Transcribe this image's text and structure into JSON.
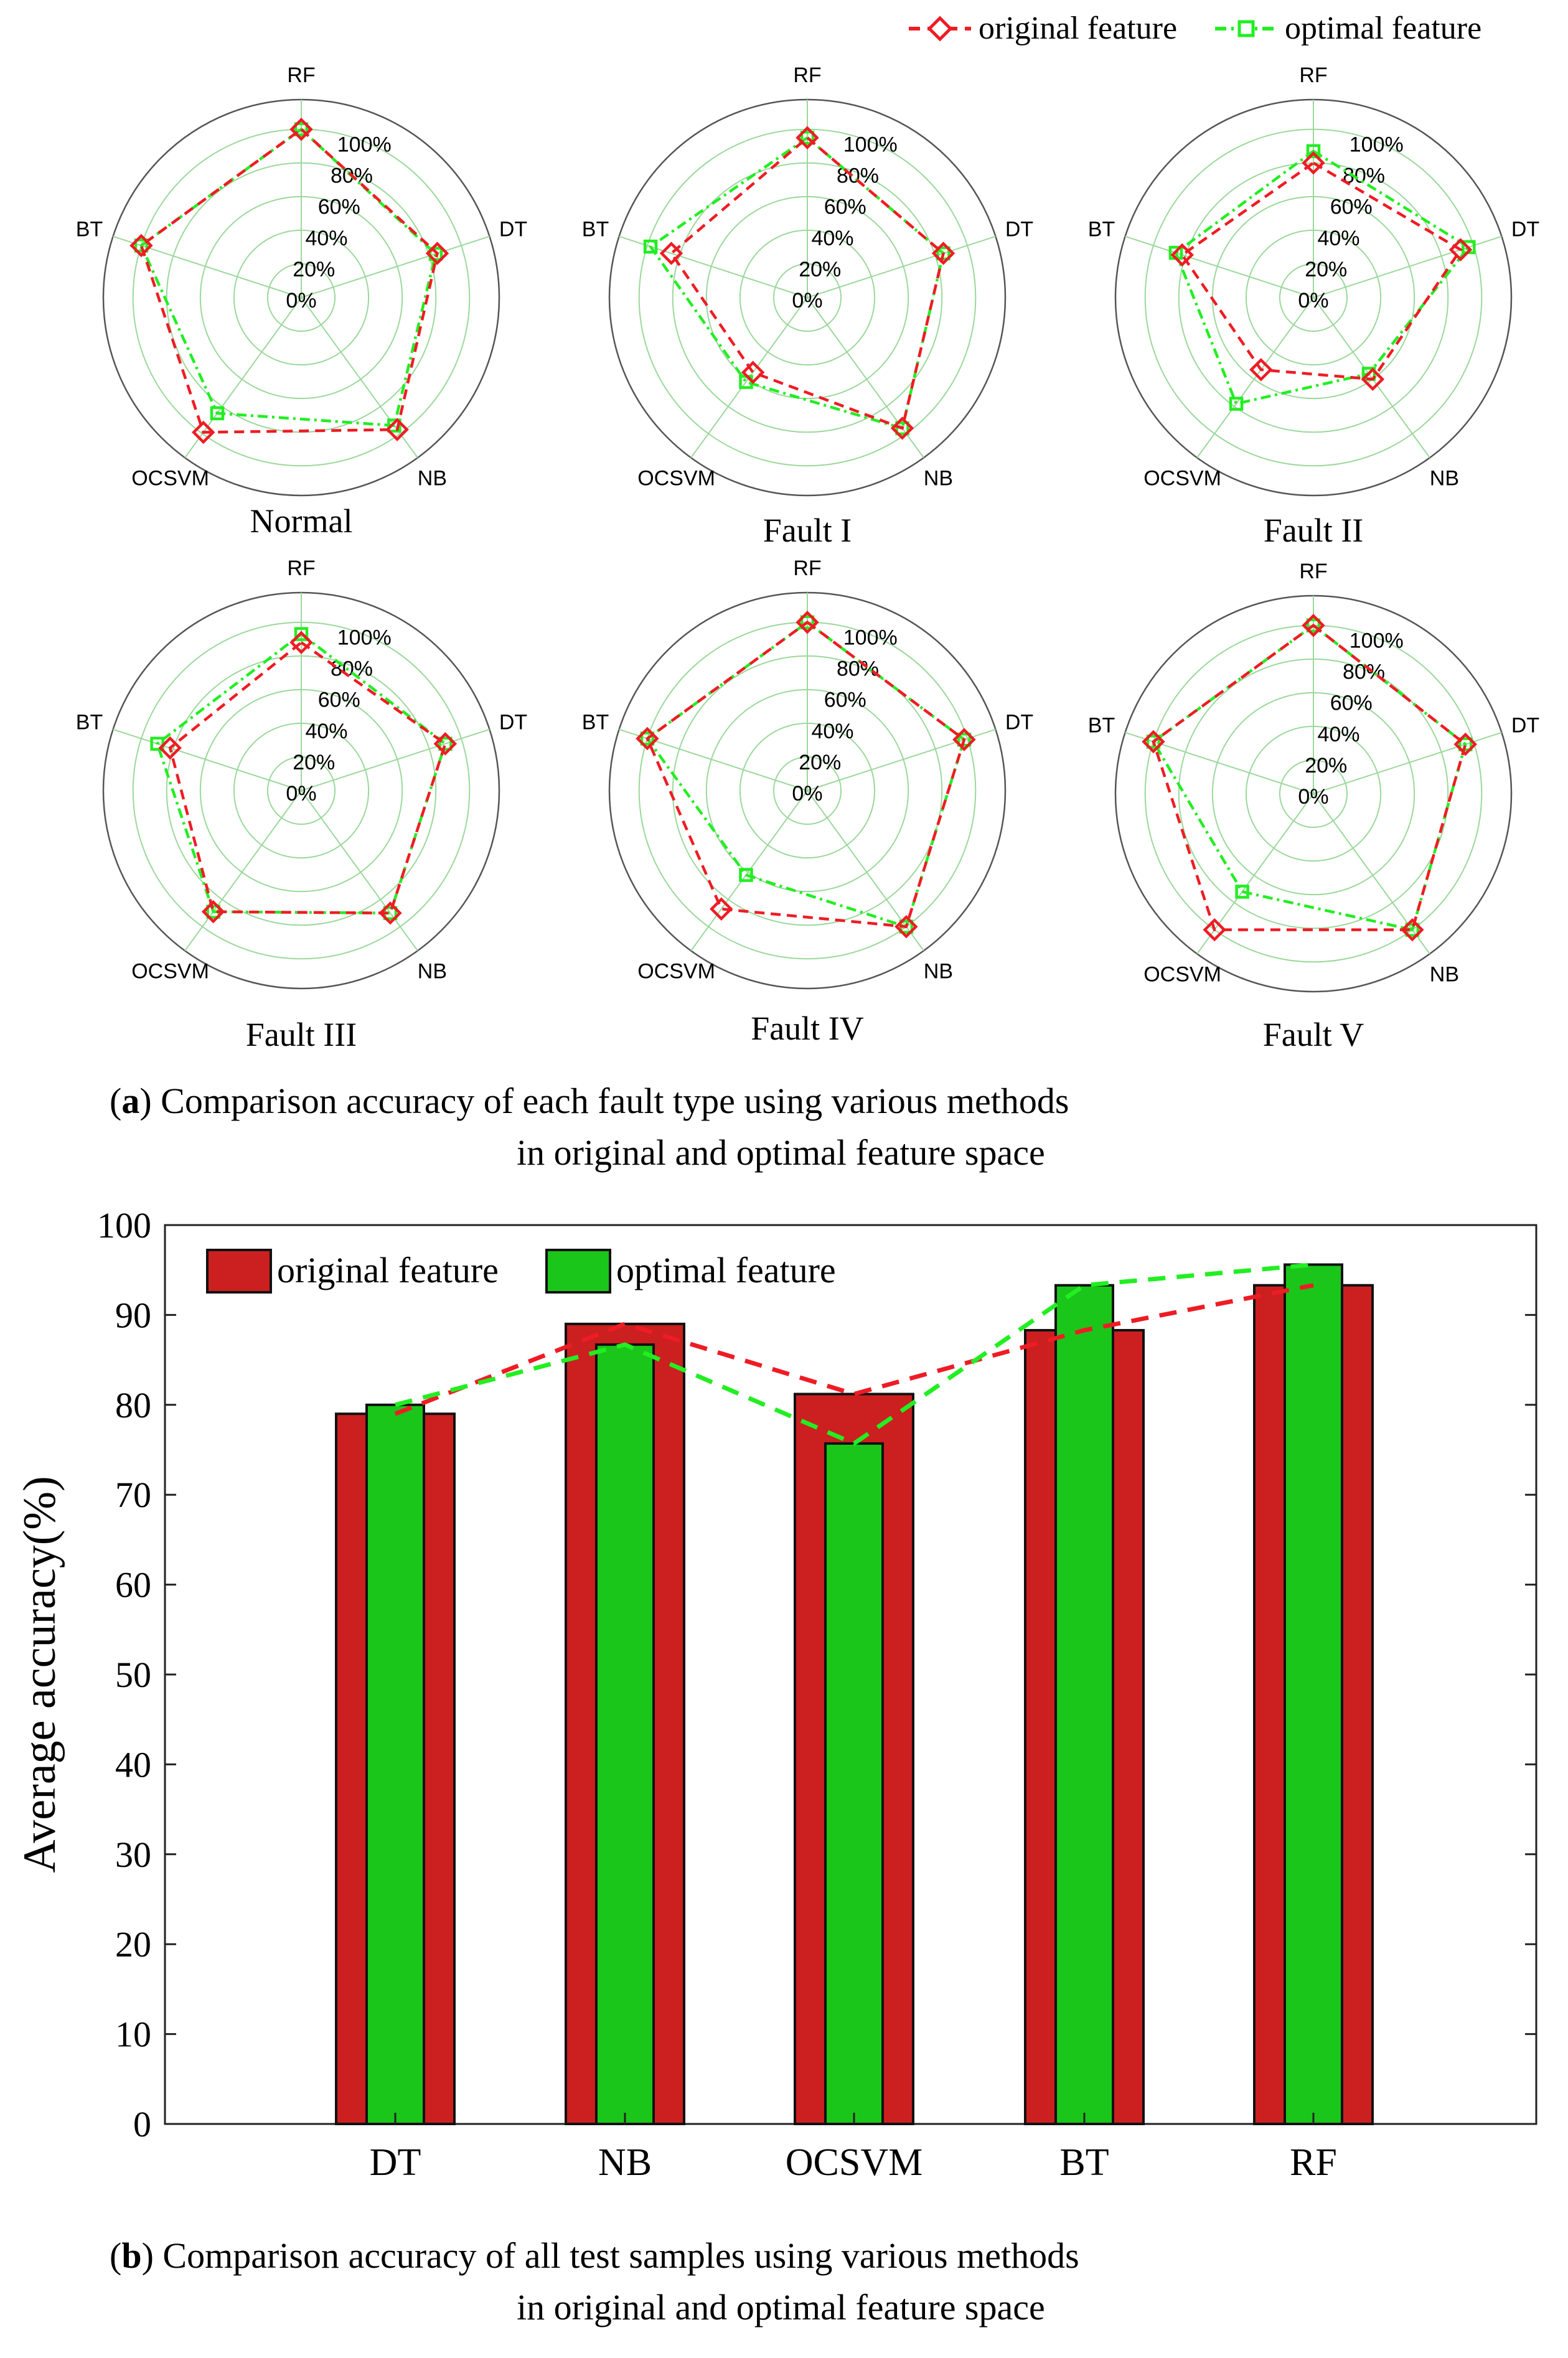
{
  "legend_top": {
    "original": "original feature",
    "optimal": "optimal feature"
  },
  "colors": {
    "original": "#ee1c24",
    "optimal": "#22ee22",
    "bar_original": "#cc1f1f",
    "bar_optimal": "#1ac61a",
    "grid": "#9bd89b"
  },
  "caption_a": {
    "tag": "a",
    "line1": " Comparison accuracy of each fault type using various methods",
    "line2": "in original and optimal feature space"
  },
  "caption_b": {
    "tag": "b",
    "line1": " Comparison accuracy of all test samples using various methods",
    "line2": "in original and optimal feature space"
  },
  "chart_data": [
    {
      "type": "radar",
      "panel": "a1",
      "title": "Normal",
      "axes": [
        "RF",
        "DT",
        "NB",
        "OCSVM",
        "BT"
      ],
      "ticks": [
        "0%",
        "20%",
        "40%",
        "60%",
        "80%",
        "100%"
      ],
      "rlim": [
        0,
        100
      ],
      "series": [
        {
          "name": "original feature",
          "values": [
            100,
            85,
            97,
            99,
            100
          ]
        },
        {
          "name": "optimal feature",
          "values": [
            100,
            84,
            94,
            85,
            100
          ]
        }
      ]
    },
    {
      "type": "radar",
      "panel": "a2",
      "title": "Fault I",
      "axes": [
        "RF",
        "DT",
        "NB",
        "OCSVM",
        "BT"
      ],
      "ticks": [
        "0%",
        "20%",
        "40%",
        "60%",
        "80%",
        "100%"
      ],
      "rlim": [
        0,
        100
      ],
      "series": [
        {
          "name": "original feature",
          "values": [
            95,
            85,
            96,
            55,
            85
          ]
        },
        {
          "name": "optimal feature",
          "values": [
            95,
            85,
            96,
            62,
            98
          ]
        }
      ]
    },
    {
      "type": "radar",
      "panel": "a3",
      "title": "Fault II",
      "axes": [
        "RF",
        "DT",
        "NB",
        "OCSVM",
        "BT"
      ],
      "ticks": [
        "0%",
        "20%",
        "40%",
        "60%",
        "80%",
        "100%"
      ],
      "rlim": [
        0,
        100
      ],
      "series": [
        {
          "name": "original feature",
          "values": [
            80,
            92,
            60,
            53,
            82
          ]
        },
        {
          "name": "optimal feature",
          "values": [
            87,
            97,
            56,
            78,
            86
          ]
        }
      ]
    },
    {
      "type": "radar",
      "panel": "a4",
      "title": "Fault III",
      "axes": [
        "RF",
        "DT",
        "NB",
        "OCSVM",
        "BT"
      ],
      "ticks": [
        "0%",
        "20%",
        "40%",
        "60%",
        "80%",
        "100%"
      ],
      "rlim": [
        0,
        100
      ],
      "series": [
        {
          "name": "original feature",
          "values": [
            88,
            90,
            90,
            89,
            82
          ]
        },
        {
          "name": "optimal feature",
          "values": [
            93,
            90,
            90,
            89,
            90
          ]
        }
      ]
    },
    {
      "type": "radar",
      "panel": "a5",
      "title": "Fault IV",
      "axes": [
        "RF",
        "DT",
        "NB",
        "OCSVM",
        "BT"
      ],
      "ticks": [
        "0%",
        "20%",
        "40%",
        "60%",
        "80%",
        "100%"
      ],
      "rlim": [
        0,
        100
      ],
      "series": [
        {
          "name": "original feature",
          "values": [
            100,
            98,
            100,
            87,
            100
          ]
        },
        {
          "name": "optimal feature",
          "values": [
            100,
            98,
            100,
            62,
            100
          ]
        }
      ]
    },
    {
      "type": "radar",
      "panel": "a6",
      "title": "Fault V",
      "axes": [
        "RF",
        "DT",
        "NB",
        "OCSVM",
        "BT"
      ],
      "ticks": [
        "0%",
        "20%",
        "40%",
        "60%",
        "80%",
        "100%"
      ],
      "rlim": [
        0,
        100
      ],
      "series": [
        {
          "name": "original feature",
          "values": [
            100,
            95,
            100,
            100,
            100
          ]
        },
        {
          "name": "optimal feature",
          "values": [
            100,
            95,
            100,
            72,
            100
          ]
        }
      ]
    },
    {
      "type": "bar",
      "panel": "b",
      "categories": [
        "DT",
        "NB",
        "OCSVM",
        "BT",
        "RF"
      ],
      "ylabel": "Average accuracy(%)",
      "ylim": [
        0,
        100
      ],
      "yticks": [
        0,
        10,
        20,
        30,
        40,
        50,
        60,
        70,
        80,
        90,
        100
      ],
      "legend": "top-left",
      "series": [
        {
          "name": "original feature",
          "values": [
            79,
            89,
            81.2,
            88.3,
            93.3
          ]
        },
        {
          "name": "optimal feature",
          "values": [
            80,
            86.7,
            75.7,
            93.3,
            95.6
          ]
        }
      ]
    }
  ]
}
